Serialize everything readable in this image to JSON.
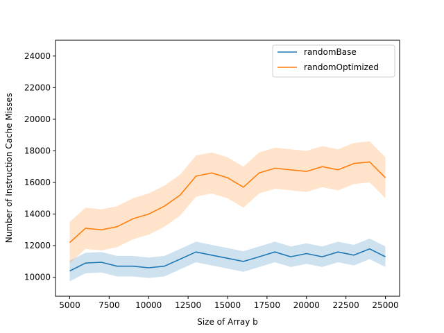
{
  "chart_data": {
    "type": "line",
    "title": "",
    "xlabel": "Size of Array b",
    "ylabel": "Number of Instruction Cache Misses",
    "xlim": [
      4100,
      25900
    ],
    "ylim": [
      8800,
      25000
    ],
    "xticks": [
      5000,
      7500,
      10000,
      12500,
      15000,
      17500,
      20000,
      22500,
      25000
    ],
    "xtick_labels": [
      "5000",
      "7500",
      "10000",
      "12500",
      "15000",
      "17500",
      "20000",
      "22500",
      "25000"
    ],
    "yticks": [
      10000,
      12000,
      14000,
      16000,
      18000,
      20000,
      22000,
      24000
    ],
    "ytick_labels": [
      "10000",
      "12000",
      "14000",
      "16000",
      "18000",
      "20000",
      "22000",
      "24000"
    ],
    "grid": false,
    "legend_position": "top-right",
    "series": [
      {
        "name": "randomBase",
        "color": "#1f77b4",
        "band": "confidence interval (shaded)",
        "points": [
          [
            5000,
            10400
          ],
          [
            6000,
            10900
          ],
          [
            7000,
            10950
          ],
          [
            8000,
            10700
          ],
          [
            9000,
            10700
          ],
          [
            10000,
            10600
          ],
          [
            11000,
            10700
          ],
          [
            12000,
            11150
          ],
          [
            13000,
            11600
          ],
          [
            14000,
            11400
          ],
          [
            15000,
            11200
          ],
          [
            16000,
            11000
          ],
          [
            17000,
            11300
          ],
          [
            18000,
            11600
          ],
          [
            19000,
            11300
          ],
          [
            20000,
            11500
          ],
          [
            21000,
            11300
          ],
          [
            22000,
            11600
          ],
          [
            23000,
            11400
          ],
          [
            24000,
            11800
          ],
          [
            25000,
            11300
          ]
        ],
        "band_half_width": 650
      },
      {
        "name": "randomOptimized",
        "color": "#ff7f0e",
        "band": "confidence interval (shaded)",
        "points": [
          [
            5000,
            12200
          ],
          [
            6000,
            13100
          ],
          [
            7000,
            13000
          ],
          [
            8000,
            13200
          ],
          [
            9000,
            13700
          ],
          [
            10000,
            14000
          ],
          [
            11000,
            14500
          ],
          [
            12000,
            15200
          ],
          [
            13000,
            16400
          ],
          [
            14000,
            16600
          ],
          [
            15000,
            16300
          ],
          [
            16000,
            15700
          ],
          [
            17000,
            16600
          ],
          [
            18000,
            16900
          ],
          [
            19000,
            16800
          ],
          [
            20000,
            16700
          ],
          [
            21000,
            17000
          ],
          [
            22000,
            16800
          ],
          [
            23000,
            17200
          ],
          [
            24000,
            17300
          ],
          [
            25000,
            16300
          ]
        ],
        "band_half_width": 1300
      }
    ]
  }
}
